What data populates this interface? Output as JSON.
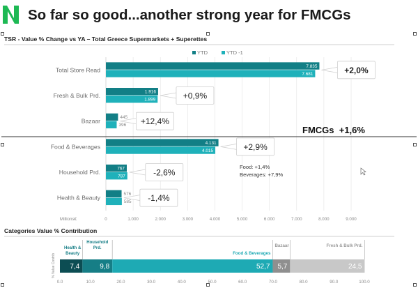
{
  "header": {
    "title": "So far so good...another strong year for FMCGs",
    "accent_color": "#1db954"
  },
  "main_chart_title": "TSR - Value % Change vs YA – Total Greece Supermarkets + Superettes",
  "contribution_title": "Categories Value % Contribution",
  "fmcg_callout": "FMCGs  +1,6%",
  "food_bev_note": {
    "food": "Food: +1,4%",
    "beverages": "Beverages: +7,9%"
  },
  "colors": {
    "ytd": "#127f86",
    "ytd_prev": "#1fb1ba",
    "hb": "#0c4d53",
    "hh": "#167e86",
    "fb": "#1eaab4",
    "bz": "#8f8f8f",
    "fr": "#c8c8c8",
    "title": "#1a1a1a"
  },
  "chart_data": [
    {
      "type": "bar",
      "orientation": "horizontal",
      "categories": [
        "Total Store Read",
        "Fresh & Bulk Prd.",
        "Bazaar",
        "Food & Beverages",
        "Household Prd.",
        "Health & Beauty"
      ],
      "series": [
        {
          "name": "YTD",
          "values": [
            7835,
            1916,
            445,
            4131,
            767,
            576
          ],
          "labels": [
            "7.835",
            "1.916",
            "445",
            "4.131",
            "767",
            "576"
          ]
        },
        {
          "name": "YTD -1",
          "values": [
            7681,
            1899,
            396,
            4015,
            787,
            585
          ],
          "labels": [
            "7.681",
            "1.899",
            "396",
            "4.015",
            "787",
            "585"
          ]
        }
      ],
      "changes": [
        "+2,0%",
        "+0,9%",
        "+12,4%",
        "+2,9%",
        "-2,6%",
        "-1,4%"
      ],
      "xlim": [
        0,
        9000
      ],
      "x_ticks": [
        "0",
        "1.000",
        "2.000",
        "3.000",
        "4.000",
        "5.000",
        "6.000",
        "7.000",
        "8.000",
        "9.000"
      ],
      "xlabel": "Millions€",
      "legend": "top-center",
      "grid": true
    },
    {
      "type": "bar",
      "orientation": "horizontal",
      "stacked": true,
      "row_label": "% Value Contrib",
      "segments": [
        {
          "name": "Health & Beauty",
          "value": 7.4,
          "label": "7,4"
        },
        {
          "name": "Household Prd.",
          "value": 9.8,
          "label": "9,8"
        },
        {
          "name": "Food & Beverages",
          "value": 52.7,
          "label": "52,7"
        },
        {
          "name": "Bazaar",
          "value": 5.7,
          "label": "5,7"
        },
        {
          "name": "Fresh & Bulk Prd.",
          "value": 24.5,
          "label": "24,5"
        }
      ],
      "xlim": [
        0,
        100
      ],
      "x_ticks": [
        "0.0",
        "10.0",
        "20.0",
        "30.0",
        "40.0",
        "50.0",
        "60.0",
        "70.0",
        "80.0",
        "90.0",
        "100.0"
      ]
    }
  ]
}
